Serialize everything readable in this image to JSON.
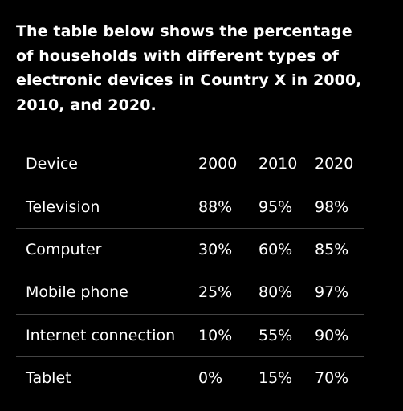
{
  "intro": "The table below shows the percentage of households with different types of electronic devices in Country X in 2000, 2010, and 2020.",
  "table": {
    "header": [
      "Device",
      "2000",
      "2010",
      "2020"
    ],
    "rows": [
      [
        "Television",
        "88%",
        "95%",
        "98%"
      ],
      [
        "Computer",
        "30%",
        "60%",
        "85%"
      ],
      [
        "Mobile phone",
        "25%",
        "80%",
        "97%"
      ],
      [
        "Internet connection",
        "10%",
        "55%",
        "90%"
      ],
      [
        "Tablet",
        "0%",
        "15%",
        "70%"
      ]
    ]
  }
}
